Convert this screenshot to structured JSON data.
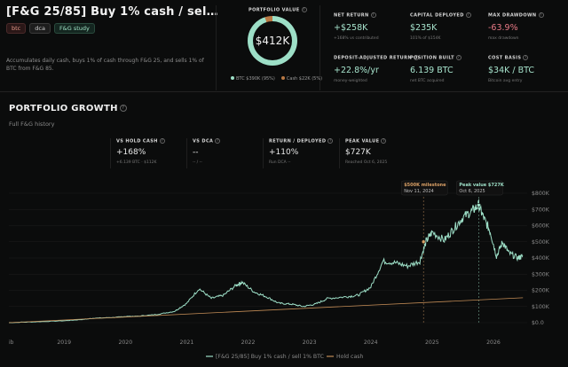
{
  "header": {
    "title": "[F&G 25/85] Buy 1% cash / sel…",
    "tags": [
      "btc",
      "dca",
      "F&G study"
    ],
    "description": "Accumulates daily cash, buys 1% of cash through F&G 25, and sells 1% of BTC from F&G 85."
  },
  "portfolio": {
    "label": "PORTFOLIO VALUE",
    "value": "$412K",
    "btc_share": 95,
    "cash_share": 5,
    "legend_btc": "BTC $390K (95%)",
    "legend_cash": "Cash $22K (5%)",
    "btc_color": "#9ddfc7",
    "cash_color": "#b87844"
  },
  "metrics": [
    {
      "label": "NET RETURN",
      "value": "+$258K",
      "sub": "+168% vs contributed",
      "tone": "g"
    },
    {
      "label": "CAPITAL DEPLOYED",
      "value": "$235K",
      "sub": "101% of $154K",
      "tone": "g"
    },
    {
      "label": "MAX DRAWDOWN",
      "value": "-63.9%",
      "sub": "max drawdown",
      "tone": "r"
    },
    {
      "label": "DEPOSIT-ADJUSTED RETURN",
      "value": "+22.8%/yr",
      "sub": "money-weighted",
      "tone": "g"
    },
    {
      "label": "POSITION BUILT",
      "value": "6.139 BTC",
      "sub": "net BTC acquired",
      "tone": "g"
    },
    {
      "label": "COST BASIS",
      "value": "$34K / BTC",
      "sub": "Bitcoin avg entry",
      "tone": "g"
    }
  ],
  "growth": {
    "title": "PORTFOLIO GROWTH",
    "subtitle": "Full F&G history",
    "stats": [
      {
        "label": "VS HOLD CASH",
        "value": "+168%",
        "sub": "+6.139 BTC · $112K"
      },
      {
        "label": "VS DCA",
        "value": "--",
        "sub": "-- / --"
      },
      {
        "label": "RETURN / DEPLOYED",
        "value": "+110%",
        "sub": "Run DCA --"
      },
      {
        "label": "PEAK VALUE",
        "value": "$727K",
        "sub": "Reached Oct 6, 2025"
      }
    ]
  },
  "chart_data": {
    "type": "line",
    "x_ticks": [
      "2019",
      "2020",
      "2021",
      "2022",
      "2023",
      "2024",
      "2025",
      "2026"
    ],
    "y_ticks": [
      "$0.0",
      "$100K",
      "$200K",
      "$300K",
      "$400K",
      "$500K",
      "$600K",
      "$700K",
      "$800K"
    ],
    "ylim": [
      0,
      800000
    ],
    "x_start_label": "ib",
    "series": [
      {
        "name": "[F&G 25/85] Buy 1% cash / sell 1% BTC",
        "color": "#9ddfc7",
        "points": [
          [
            2018.1,
            0
          ],
          [
            2018.5,
            5000
          ],
          [
            2019.0,
            12000
          ],
          [
            2019.3,
            20000
          ],
          [
            2019.5,
            28000
          ],
          [
            2019.8,
            32000
          ],
          [
            2020.0,
            38000
          ],
          [
            2020.2,
            40000
          ],
          [
            2020.5,
            50000
          ],
          [
            2020.8,
            70000
          ],
          [
            2021.0,
            120000
          ],
          [
            2021.2,
            210000
          ],
          [
            2021.4,
            150000
          ],
          [
            2021.6,
            170000
          ],
          [
            2021.8,
            230000
          ],
          [
            2021.9,
            250000
          ],
          [
            2022.1,
            190000
          ],
          [
            2022.3,
            160000
          ],
          [
            2022.5,
            120000
          ],
          [
            2022.7,
            115000
          ],
          [
            2022.9,
            100000
          ],
          [
            2023.1,
            115000
          ],
          [
            2023.3,
            150000
          ],
          [
            2023.6,
            160000
          ],
          [
            2023.8,
            170000
          ],
          [
            2024.0,
            220000
          ],
          [
            2024.2,
            380000
          ],
          [
            2024.4,
            370000
          ],
          [
            2024.6,
            350000
          ],
          [
            2024.8,
            380000
          ],
          [
            2024.9,
            500000
          ],
          [
            2025.0,
            560000
          ],
          [
            2025.2,
            510000
          ],
          [
            2025.35,
            580000
          ],
          [
            2025.5,
            650000
          ],
          [
            2025.65,
            690000
          ],
          [
            2025.76,
            727000
          ],
          [
            2025.85,
            640000
          ],
          [
            2025.95,
            560000
          ],
          [
            2026.05,
            410000
          ],
          [
            2026.15,
            500000
          ],
          [
            2026.25,
            430000
          ],
          [
            2026.4,
            400000
          ],
          [
            2026.48,
            412000
          ]
        ]
      },
      {
        "name": "Hold cash",
        "color": "#c08a55",
        "points": [
          [
            2018.1,
            0
          ],
          [
            2026.48,
            154000
          ]
        ]
      }
    ],
    "annotations": [
      {
        "title": "$500K milestone",
        "date": "Nov 11, 2024",
        "x": 2024.86,
        "y": 500000,
        "color": "#d9a066"
      },
      {
        "title": "Peak value $727K",
        "date": "Oct 6, 2025",
        "x": 2025.76,
        "y": 727000,
        "color": "#9ddfc7"
      }
    ],
    "legend": [
      "[F&G 25/85] Buy 1% cash / sell 1% BTC",
      "Hold cash"
    ],
    "legend_position": "bottom"
  }
}
